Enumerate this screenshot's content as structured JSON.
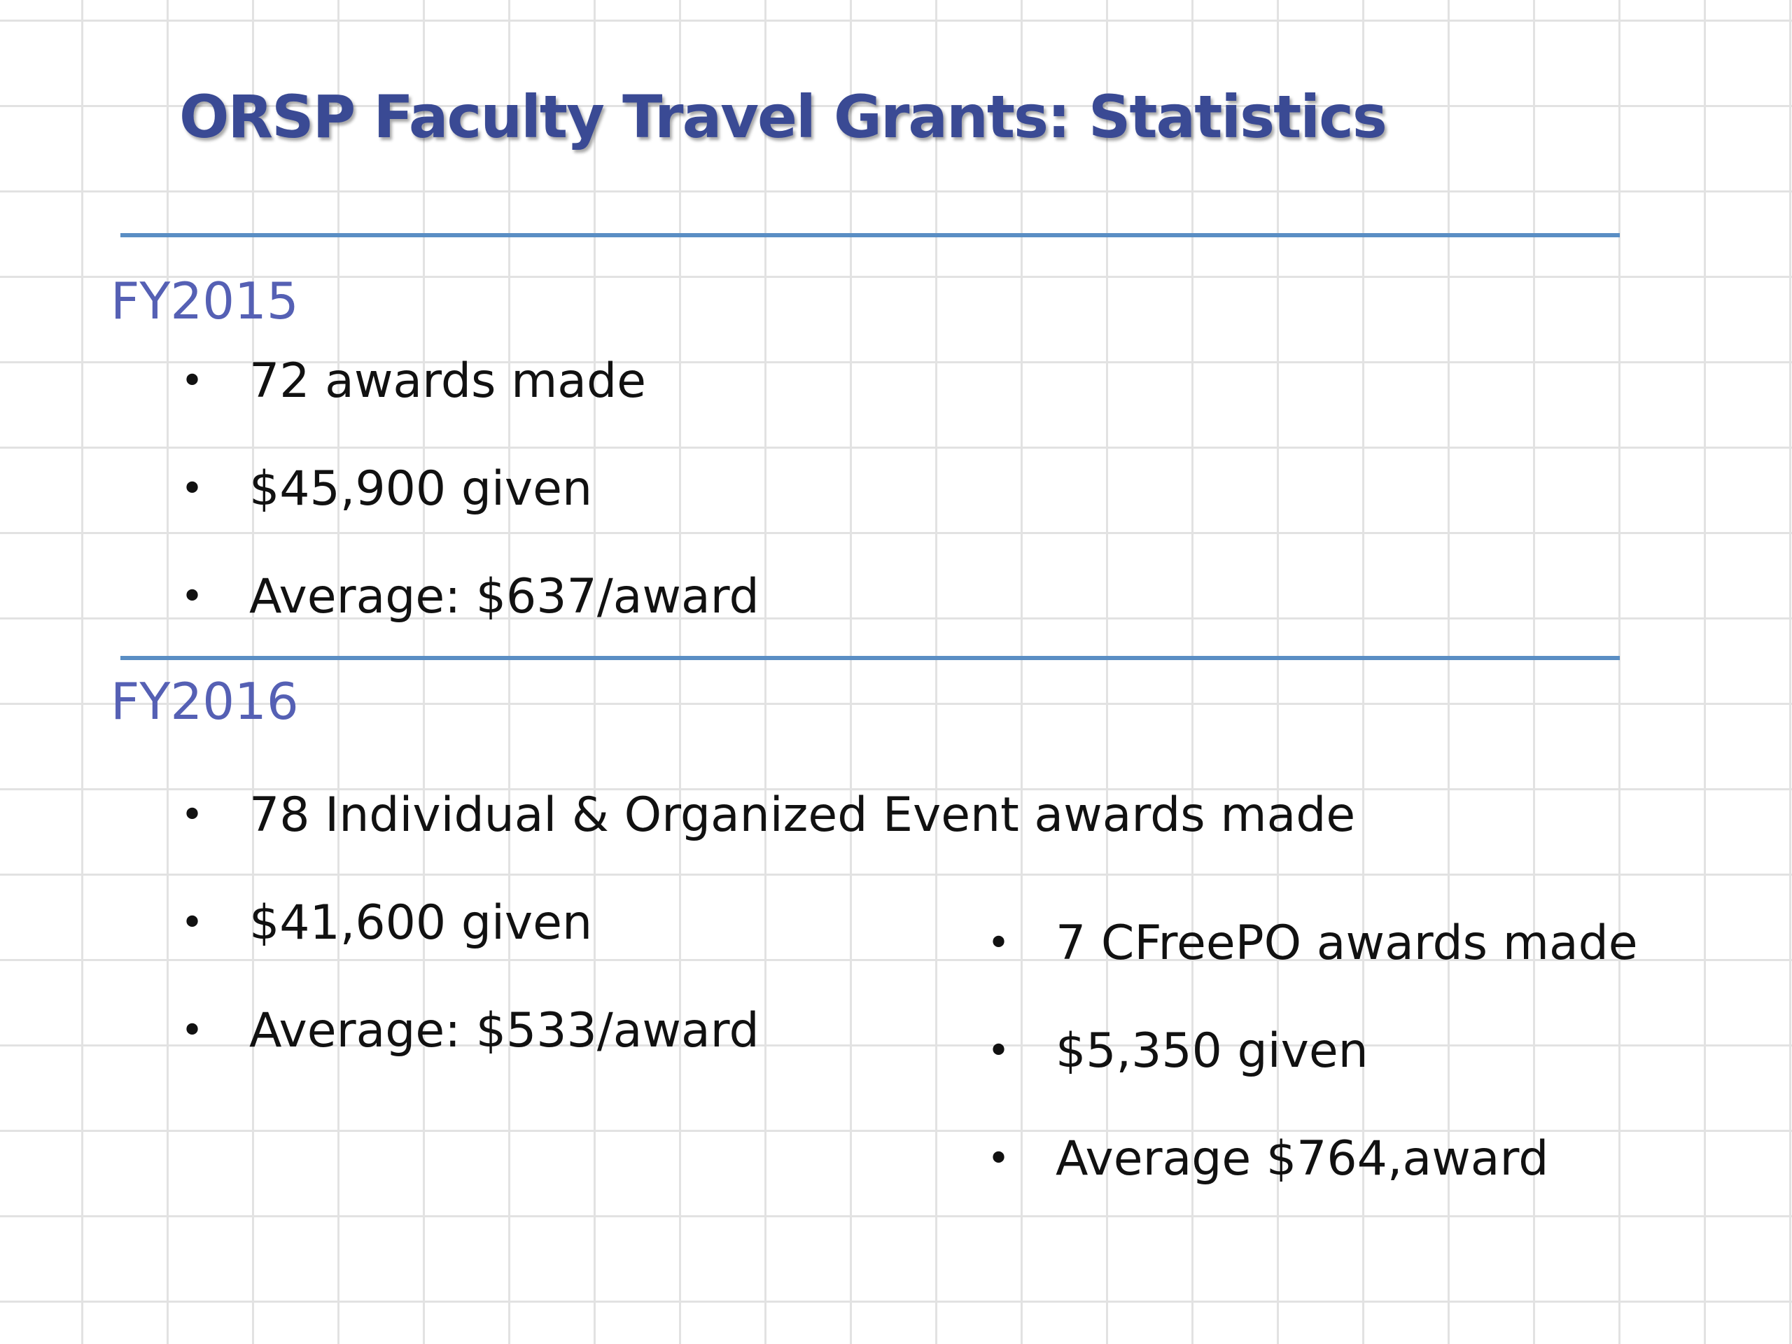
{
  "colors": {
    "title": "#3a4a94",
    "heading": "#5560b4",
    "rule": "#5a8ec4",
    "text": "#111111"
  },
  "slide": {
    "title": "ORSP Faculty Travel Grants: Statistics"
  },
  "fy2015": {
    "heading": "FY2015",
    "bullets": [
      "72 awards made",
      "$45,900 given",
      "Average: $637/award"
    ]
  },
  "fy2016": {
    "heading": "FY2016",
    "individual_bullets": [
      "78 Individual & Organized Event awards made",
      "$41,600 given",
      "Average: $533/award"
    ],
    "cfreepo_bullets": [
      "7 CFreePO awards made",
      "$5,350 given",
      "Average $764,award"
    ]
  },
  "bullet_glyph": "•"
}
